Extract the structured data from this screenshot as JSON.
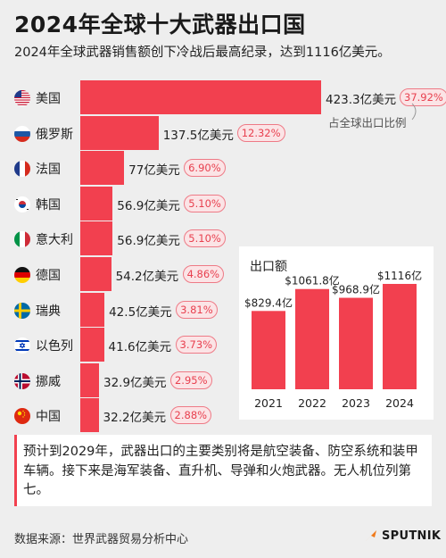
{
  "title": "2024年全球十大武器出口国",
  "subtitle": "2024年全球武器销售额创下冷战后最高纪录，达到1116亿美元。",
  "annotation": "占全球出口比例",
  "colors": {
    "bar": "#f2404f",
    "background": "#eeeeee",
    "pct_text": "#e8404f"
  },
  "chart_data": [
    {
      "type": "bar",
      "orientation": "horizontal",
      "categories": [
        "美国",
        "俄罗斯",
        "法国",
        "韩国",
        "意大利",
        "德国",
        "瑞典",
        "以色列",
        "挪威",
        "中国"
      ],
      "flags": [
        "us-flag-icon",
        "russia-flag-icon",
        "france-flag-icon",
        "korea-flag-icon",
        "italy-flag-icon",
        "germany-flag-icon",
        "sweden-flag-icon",
        "israel-flag-icon",
        "norway-flag-icon",
        "china-flag-icon"
      ],
      "values": [
        423.3,
        137.5,
        77,
        56.9,
        56.9,
        54.2,
        42.5,
        41.6,
        32.9,
        32.2
      ],
      "value_labels": [
        "423.3亿美元",
        "137.5亿美元",
        "77亿美元",
        "56.9亿美元",
        "56.9亿美元",
        "54.2亿美元",
        "42.5亿美元",
        "41.6亿美元",
        "32.9亿美元",
        "32.2亿美元"
      ],
      "shares": [
        "37.92%",
        "12.32%",
        "6.90%",
        "5.10%",
        "5.10%",
        "4.86%",
        "3.81%",
        "3.73%",
        "2.95%",
        "2.88%"
      ]
    },
    {
      "type": "bar",
      "title": "出口额",
      "categories": [
        "2021",
        "2022",
        "2023",
        "2024"
      ],
      "values": [
        829.4,
        1061.8,
        968.9,
        1116
      ],
      "value_labels": [
        "$829.4亿",
        "$1061.8亿",
        "$968.9亿",
        "$1116亿"
      ]
    }
  ],
  "note": "预计到2029年，武器出口的主要类别将是航空装备、防空系统和装甲车辆。接下来是海军装备、直升机、导弹和火炮武器。无人机位列第七。",
  "source": "数据来源：世界武器贸易分析中心",
  "logo": "SPUTNIK"
}
